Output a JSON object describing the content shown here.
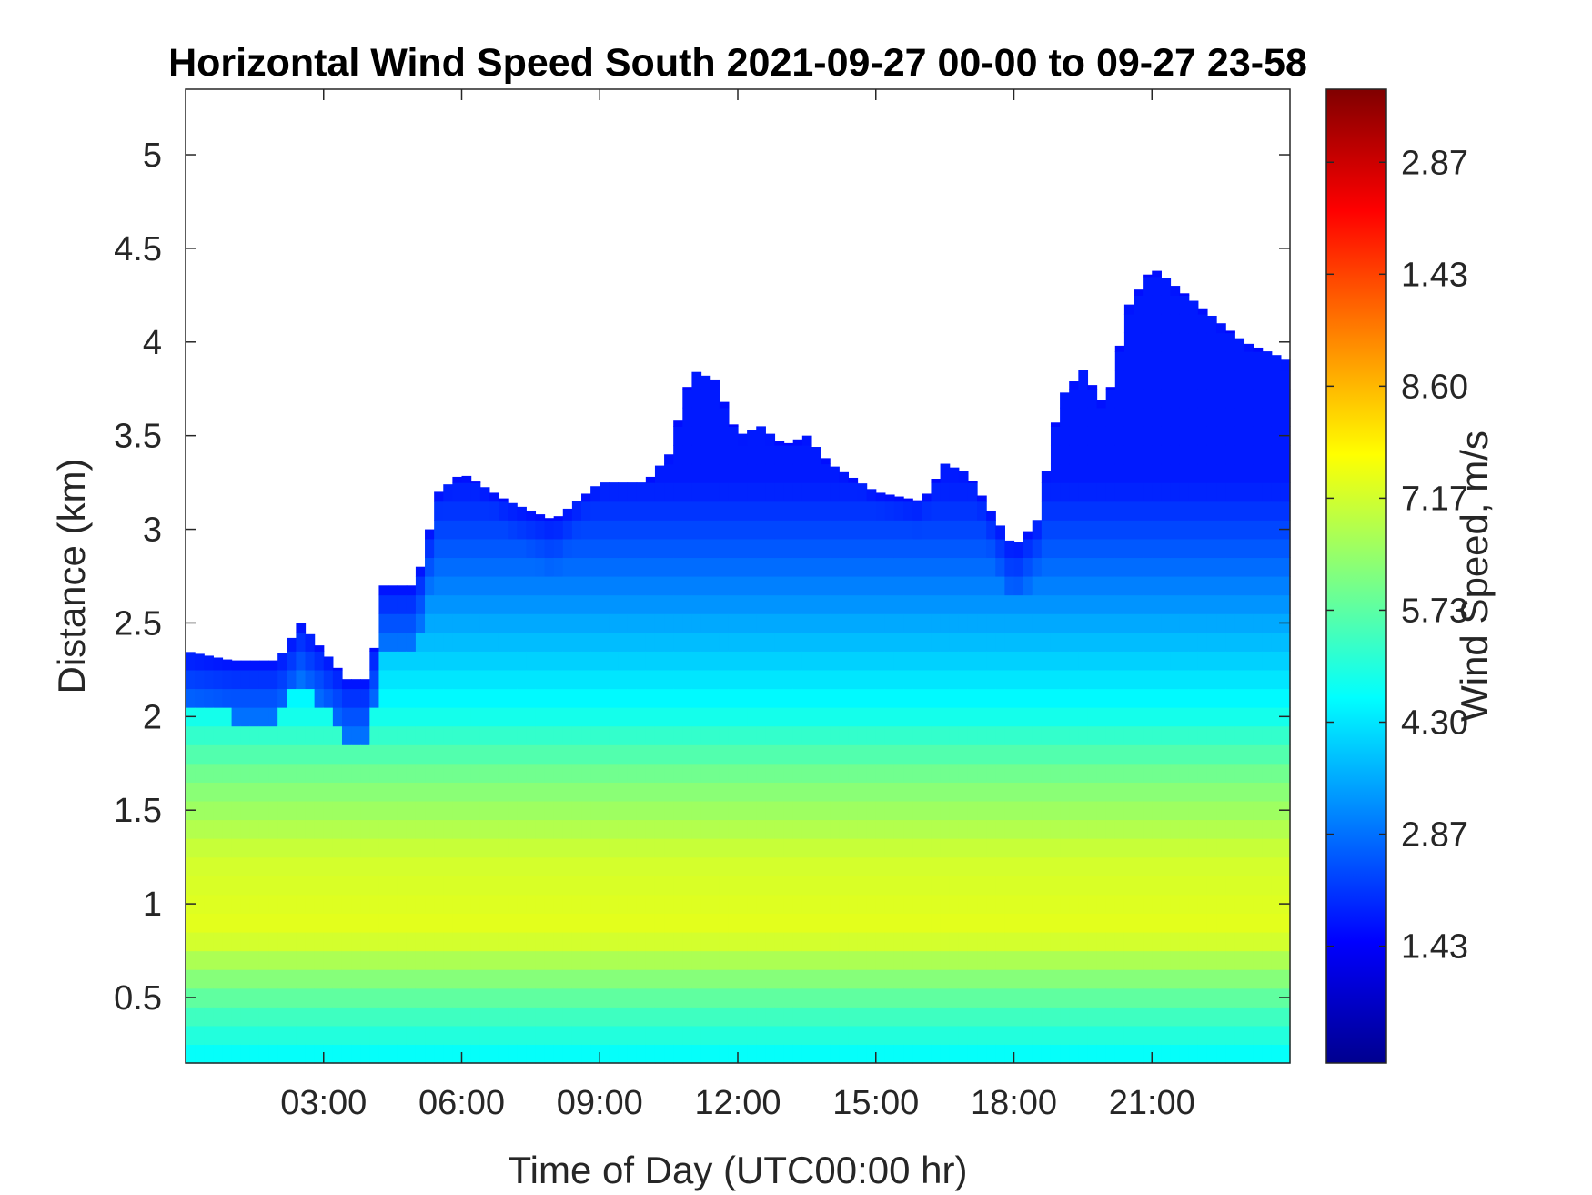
{
  "chart_data": {
    "type": "heatmap",
    "title": "Horizontal Wind Speed South 2021-09-27 00-00 to 09-27 23-58",
    "xlabel": "Time of Day (UTC00:00 hr)",
    "ylabel": "Distance (km)",
    "colorbar_label": "Wind Speed, m/s",
    "xlim_hours": [
      0,
      24
    ],
    "ylim_km": [
      0.15,
      5.35
    ],
    "x_ticks": [
      {
        "hour": 3,
        "label": "03:00"
      },
      {
        "hour": 6,
        "label": "06:00"
      },
      {
        "hour": 9,
        "label": "09:00"
      },
      {
        "hour": 12,
        "label": "12:00"
      },
      {
        "hour": 15,
        "label": "15:00"
      },
      {
        "hour": 18,
        "label": "18:00"
      },
      {
        "hour": 21,
        "label": "21:00"
      }
    ],
    "y_ticks": [
      {
        "value": 0.5,
        "label": "0.5"
      },
      {
        "value": 1,
        "label": "1"
      },
      {
        "value": 1.5,
        "label": "1.5"
      },
      {
        "value": 2,
        "label": "2"
      },
      {
        "value": 2.5,
        "label": "2.5"
      },
      {
        "value": 3,
        "label": "3"
      },
      {
        "value": 3.5,
        "label": "3.5"
      },
      {
        "value": 4,
        "label": "4"
      },
      {
        "value": 4.5,
        "label": "4.5"
      },
      {
        "value": 5,
        "label": "5"
      }
    ],
    "colorbar_ticks": [
      {
        "frac": 0.12,
        "label": "1.43"
      },
      {
        "frac": 0.235,
        "label": "2.87"
      },
      {
        "frac": 0.35,
        "label": "4.30"
      },
      {
        "frac": 0.465,
        "label": "5.73"
      },
      {
        "frac": 0.58,
        "label": "7.17"
      },
      {
        "frac": 0.695,
        "label": "8.60"
      },
      {
        "frac": 0.81,
        "label": "1.43"
      },
      {
        "frac": 0.925,
        "label": "2.87"
      }
    ],
    "colormap": "jet",
    "colormap_stops": [
      "#00008f",
      "#0000ff",
      "#0080ff",
      "#00ffff",
      "#80ff80",
      "#ffff00",
      "#ff8000",
      "#ff0000",
      "#800000"
    ],
    "data_top_km": {
      "hours": [
        0,
        1,
        2,
        2.5,
        3,
        3.5,
        4,
        4.3,
        5,
        5.5,
        6,
        7,
        8,
        8.5,
        9,
        10,
        10.5,
        11,
        11.5,
        12,
        12.5,
        13,
        13.5,
        14,
        15,
        16,
        16.5,
        17,
        17.5,
        18,
        18.5,
        19,
        19.5,
        20,
        20.5,
        21,
        22,
        23,
        24
      ],
      "km": [
        2.35,
        2.3,
        2.3,
        2.5,
        2.35,
        2.2,
        2.2,
        2.7,
        2.7,
        3.2,
        3.3,
        3.15,
        3.05,
        3.15,
        3.25,
        3.25,
        3.4,
        3.85,
        3.8,
        3.5,
        3.55,
        3.45,
        3.5,
        3.35,
        3.2,
        3.15,
        3.35,
        3.3,
        3.1,
        2.9,
        3.05,
        3.7,
        3.85,
        3.65,
        4.2,
        4.4,
        4.2,
        4.0,
        3.9
      ]
    },
    "wind_speed_color_index_by_height": {
      "km": [
        0.15,
        0.4,
        0.8,
        1.2,
        1.6,
        2.0,
        2.4,
        2.8,
        3.2
      ],
      "index": [
        0.38,
        0.45,
        0.6,
        0.58,
        0.5,
        0.38,
        0.3,
        0.22,
        0.15
      ]
    }
  }
}
